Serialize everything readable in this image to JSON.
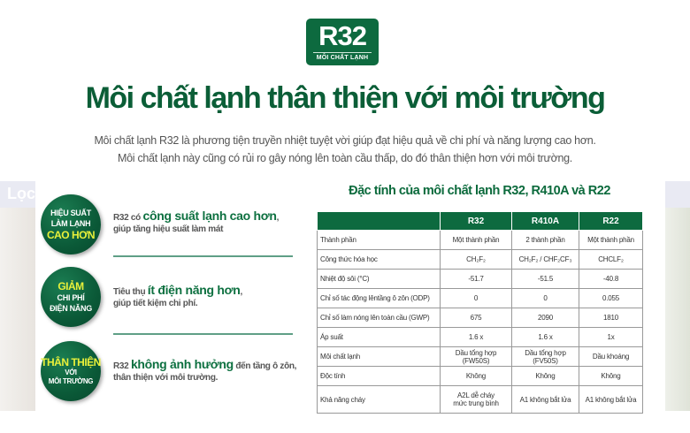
{
  "background": {
    "partial_text": "Lọc"
  },
  "logo": {
    "main": "R32",
    "caption": "MÔI CHẤT LẠNH"
  },
  "headline": "Môi chất lạnh thân thiện với môi trường",
  "subtitle": [
    "Môi chất lạnh R32 là phương tiện truyền nhiệt tuyệt vời giúp đạt hiệu quả về chi phí và năng lượng cao hơn.",
    "Môi chất lạnh này cũng có rủi ro gây nóng lên toàn cầu thấp, do đó thân thiện hơn với môi trường."
  ],
  "features": [
    {
      "badge": [
        "HIỆU SUẤT",
        "LÀM LẠNH",
        "CAO HƠN"
      ],
      "pre": "R32 có ",
      "highlight": "công suất lạnh cao hơn",
      "post": ",",
      "line2": "giúp tăng hiệu suất làm mát"
    },
    {
      "badge": [
        "GIẢM",
        "CHI PHÍ",
        "ĐIỆN NĂNG"
      ],
      "pre": "Tiêu thụ ",
      "highlight": "ít điện năng hơn",
      "post": ",",
      "line2": "giúp tiết kiệm chi phí."
    },
    {
      "badge": [
        "THÂN THIỆN",
        "VỚI",
        "MÔI TRƯỜNG"
      ],
      "pre": "R32 ",
      "highlight": "không ảnh hưởng",
      "post": " đến tầng ô zôn,",
      "line2": "thân thiện với môi trường."
    }
  ],
  "table": {
    "title": "Đặc tính của môi chất lạnh R32, R410A và R22",
    "headers": [
      "",
      "R32",
      "R410A",
      "R22"
    ],
    "rows": [
      [
        "Thành phần",
        "Một thành phần",
        "2 thành phần",
        "Một thành phần"
      ],
      [
        "Công thức hóa học",
        "CH₂F₂",
        "CH₂F₂ / CHF₂CF₃",
        "CHCLF₂"
      ],
      [
        "Nhiệt độ sôi (°C)",
        "-51.7",
        "-51.5",
        "-40.8"
      ],
      [
        "Chỉ số tác động lêntầng ô zôn (ODP)",
        "0",
        "0",
        "0.055"
      ],
      [
        "Chỉ số làm nóng  lên toàn cầu (GWP)",
        "675",
        "2090",
        "1810"
      ],
      [
        "Áp suất",
        "1.6 x",
        "1.6 x",
        "1x"
      ],
      [
        "Môi chất lạnh",
        "Dầu tổng hợp (FW50S)",
        "Dầu tổng hợp (FV50S)",
        "Dầu khoáng"
      ],
      [
        "Độc tính",
        "Không",
        "Không",
        "Không"
      ],
      [
        "Khả năng cháy",
        "A2L dễ cháy\nmức trung bình",
        "A1 không bắt lửa",
        "A1 không bắt lửa"
      ]
    ]
  },
  "colors": {
    "brand_green": "#0d6a3f",
    "highlight_yellow": "#e8f03a",
    "text_gray": "#555555"
  }
}
